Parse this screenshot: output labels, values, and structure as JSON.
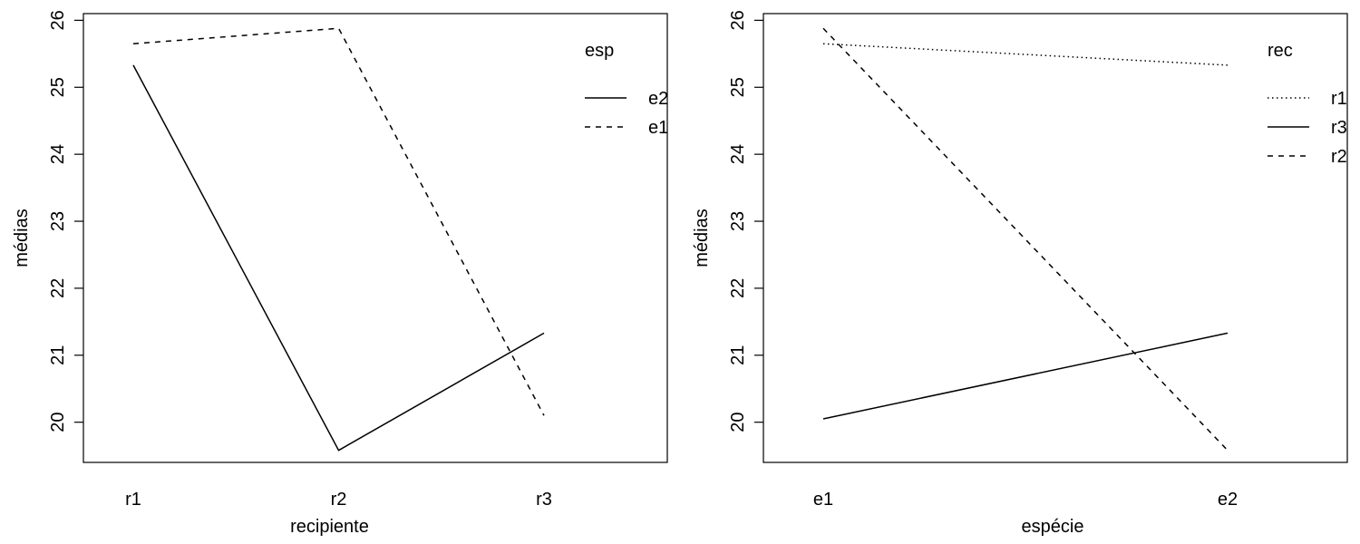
{
  "chart_data": [
    {
      "type": "line",
      "xlabel": "recipiente",
      "ylabel": "médias",
      "categories": [
        "r1",
        "r2",
        "r3"
      ],
      "ylim": [
        19.4,
        26.1
      ],
      "yticks": [
        20,
        21,
        22,
        23,
        24,
        25,
        26
      ],
      "grid": false,
      "legend": {
        "title": "esp",
        "placement": "top-right",
        "entries": [
          {
            "label": "e2",
            "linestyle": "solid"
          },
          {
            "label": "e1",
            "linestyle": "dashed"
          }
        ]
      },
      "series": [
        {
          "name": "e2",
          "linestyle": "solid",
          "values": [
            25.33,
            19.58,
            21.33
          ]
        },
        {
          "name": "e1",
          "linestyle": "dashed",
          "values": [
            25.65,
            25.88,
            20.1
          ]
        }
      ]
    },
    {
      "type": "line",
      "xlabel": "espécie",
      "ylabel": "médias",
      "categories": [
        "e1",
        "e2"
      ],
      "ylim": [
        19.4,
        26.1
      ],
      "yticks": [
        20,
        21,
        22,
        23,
        24,
        25,
        26
      ],
      "grid": false,
      "legend": {
        "title": "rec",
        "placement": "top-right",
        "entries": [
          {
            "label": "r1",
            "linestyle": "dotted"
          },
          {
            "label": "r3",
            "linestyle": "solid"
          },
          {
            "label": "r2",
            "linestyle": "dashed"
          }
        ]
      },
      "series": [
        {
          "name": "r1",
          "linestyle": "dotted",
          "values": [
            25.65,
            25.33
          ]
        },
        {
          "name": "r3",
          "linestyle": "solid",
          "values": [
            20.05,
            21.33
          ]
        },
        {
          "name": "r2",
          "linestyle": "dashed",
          "values": [
            25.88,
            19.58
          ]
        }
      ]
    }
  ]
}
